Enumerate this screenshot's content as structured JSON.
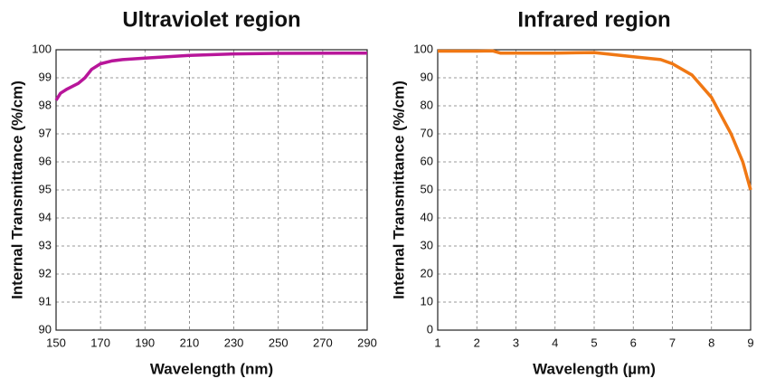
{
  "chart_data": [
    {
      "type": "line",
      "title": "Ultraviolet region",
      "x_label": "Wavelength (nm)",
      "y_label": "Internal Transmittance (%/cm)",
      "x": [
        150,
        152,
        155,
        160,
        163,
        166,
        170,
        175,
        180,
        190,
        200,
        210,
        230,
        250,
        290
      ],
      "series": [
        {
          "name": "Ultraviolet",
          "color": "#b8169a",
          "values": [
            98.2,
            98.45,
            98.6,
            98.8,
            99.0,
            99.3,
            99.5,
            99.6,
            99.65,
            99.7,
            99.75,
            99.8,
            99.85,
            99.87,
            99.88
          ]
        }
      ],
      "xlim": [
        150,
        290
      ],
      "xticks": [
        150,
        170,
        190,
        210,
        230,
        250,
        270,
        290
      ],
      "ylim": [
        90,
        100
      ],
      "yticks": [
        90,
        91,
        92,
        93,
        94,
        95,
        96,
        97,
        98,
        99,
        100
      ],
      "grid": true
    },
    {
      "type": "line",
      "title": "Infrared region",
      "x_label": "Wavelength (µm)",
      "y_label": "Internal Transmittance (%/cm)",
      "x": [
        1,
        2,
        2.4,
        2.6,
        3,
        4,
        5,
        6,
        6.7,
        7,
        7.5,
        8,
        8.5,
        8.8,
        9
      ],
      "series": [
        {
          "name": "Infrared",
          "color": "#f07814",
          "values": [
            99.5,
            99.5,
            99.6,
            98.8,
            98.8,
            98.8,
            99,
            97.5,
            96.5,
            95,
            91,
            83,
            70,
            60,
            50
          ]
        }
      ],
      "xlim": [
        1,
        9
      ],
      "xticks": [
        1,
        2,
        3,
        4,
        5,
        6,
        7,
        8,
        9
      ],
      "ylim": [
        0,
        100
      ],
      "yticks": [
        0,
        10,
        20,
        30,
        40,
        50,
        60,
        70,
        80,
        90,
        100
      ],
      "grid": true
    }
  ]
}
